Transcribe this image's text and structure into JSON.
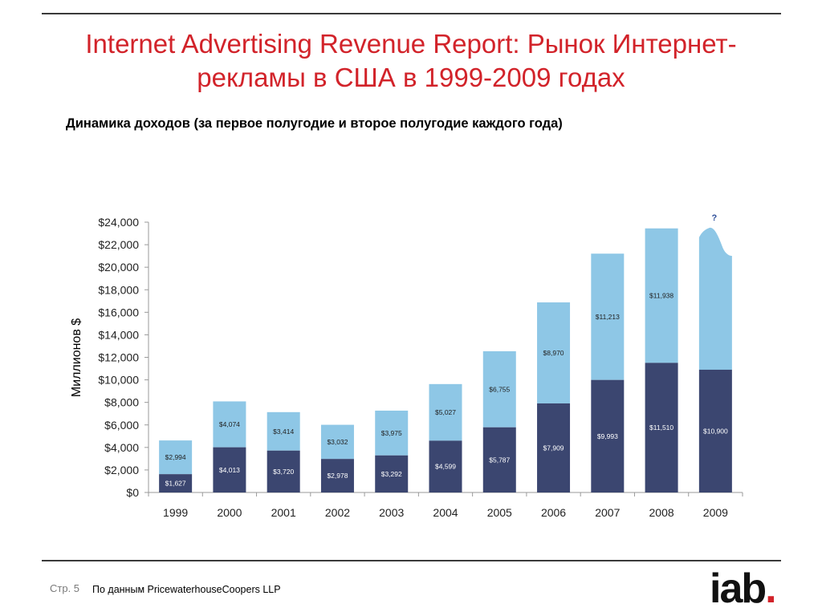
{
  "slide": {
    "title": "Internet Advertising Revenue Report: Рынок Интернет-рекламы в США в 1999-2009 годах",
    "subtitle": "Динамика доходов (за первое полугодие и второе полугодие каждого года)",
    "page_label": "Стр. 5",
    "source": "По данным PricewaterhouseCoopers LLP",
    "logo_text": "iab",
    "logo_dot": "."
  },
  "chart_data": {
    "type": "bar",
    "stacked": true,
    "ylabel": "Миллионов $",
    "ylim": [
      0,
      24000
    ],
    "ytick_step": 2000,
    "ytick_labels": [
      "$0",
      "$2,000",
      "$4,000",
      "$6,000",
      "$8,000",
      "$10,000",
      "$12,000",
      "$14,000",
      "$16,000",
      "$18,000",
      "$20,000",
      "$22,000",
      "$24,000"
    ],
    "categories": [
      "1999",
      "2000",
      "2001",
      "2002",
      "2003",
      "2004",
      "2005",
      "2006",
      "2007",
      "2008",
      "2009"
    ],
    "series": [
      {
        "color": "#3b4670",
        "values": [
          1627,
          4013,
          3720,
          2978,
          3292,
          4599,
          5787,
          7909,
          9993,
          11510,
          10900
        ],
        "labels": [
          "$1,627",
          "$4,013",
          "$3,720",
          "$2,978",
          "$3,292",
          "$4,599",
          "$5,787",
          "$7,909",
          "$9,993",
          "$11,510",
          "$10,900"
        ]
      },
      {
        "color": "#8ec7e6",
        "values": [
          2994,
          4074,
          3414,
          3032,
          3975,
          5027,
          6755,
          8970,
          11213,
          11938,
          null
        ],
        "labels": [
          "$2,994",
          "$4,074",
          "$3,414",
          "$3,032",
          "$3,975",
          "$5,027",
          "$6,755",
          "$8,970",
          "$11,213",
          "$11,938",
          ""
        ]
      }
    ],
    "annotation": "?",
    "grid": false,
    "legend": "none"
  }
}
